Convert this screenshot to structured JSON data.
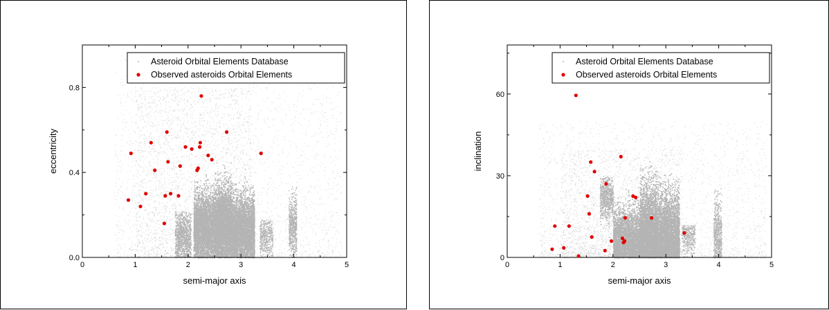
{
  "chart_data": [
    {
      "type": "scatter",
      "xlabel": "semi-major axis",
      "ylabel": "eccentricity",
      "xlim": [
        0,
        5
      ],
      "ylim": [
        0,
        1.0
      ],
      "xticks": [
        "0",
        "1",
        "2",
        "3",
        "4",
        "5"
      ],
      "yticks": [
        "0.0",
        "0.4",
        "0.8"
      ],
      "legend_placement": "top-right",
      "series": [
        {
          "name": "Asteroid Orbital Elements Database",
          "color": "#b4b4b4",
          "marker": "dot"
        },
        {
          "name": "Observed asteroids Orbital Elements",
          "color": "#e00000",
          "marker": "filled-circle",
          "points": [
            [
              0.87,
              0.27
            ],
            [
              0.92,
              0.49
            ],
            [
              1.1,
              0.24
            ],
            [
              1.2,
              0.3
            ],
            [
              1.3,
              0.54
            ],
            [
              1.37,
              0.41
            ],
            [
              1.55,
              0.16
            ],
            [
              1.57,
              0.29
            ],
            [
              1.6,
              0.59
            ],
            [
              1.62,
              0.45
            ],
            [
              1.67,
              0.3
            ],
            [
              1.82,
              0.29
            ],
            [
              1.85,
              0.43
            ],
            [
              1.95,
              0.52
            ],
            [
              2.07,
              0.51
            ],
            [
              2.17,
              0.41
            ],
            [
              2.19,
              0.42
            ],
            [
              2.22,
              0.52
            ],
            [
              2.23,
              0.54
            ],
            [
              2.25,
              0.76
            ],
            [
              2.38,
              0.48
            ],
            [
              2.45,
              0.46
            ],
            [
              2.73,
              0.59
            ],
            [
              3.38,
              0.49
            ]
          ]
        }
      ]
    },
    {
      "type": "scatter",
      "xlabel": "semi-major axis",
      "ylabel": "inclination",
      "xlim": [
        0,
        5
      ],
      "ylim": [
        0,
        78
      ],
      "xticks": [
        "0",
        "1",
        "2",
        "3",
        "4",
        "5"
      ],
      "yticks": [
        "0",
        "30",
        "60"
      ],
      "legend_placement": "top-right",
      "series": [
        {
          "name": "Asteroid Orbital Elements Database",
          "color": "#b4b4b4",
          "marker": "dot"
        },
        {
          "name": "Observed asteroids Orbital Elements",
          "color": "#e00000",
          "marker": "filled-circle",
          "points": [
            [
              0.85,
              3
            ],
            [
              0.9,
              11.5
            ],
            [
              1.07,
              3.5
            ],
            [
              1.17,
              11.5
            ],
            [
              1.3,
              59.5
            ],
            [
              1.35,
              0.5
            ],
            [
              1.52,
              22.5
            ],
            [
              1.55,
              16
            ],
            [
              1.58,
              35
            ],
            [
              1.6,
              7.5
            ],
            [
              1.65,
              31.5
            ],
            [
              1.85,
              2.5
            ],
            [
              1.87,
              27
            ],
            [
              1.97,
              6
            ],
            [
              2.15,
              37
            ],
            [
              2.18,
              7
            ],
            [
              2.2,
              5.5
            ],
            [
              2.22,
              6
            ],
            [
              2.23,
              14.5
            ],
            [
              2.38,
              22.5
            ],
            [
              2.43,
              22
            ],
            [
              2.73,
              14.5
            ],
            [
              3.35,
              9
            ]
          ]
        }
      ]
    }
  ]
}
